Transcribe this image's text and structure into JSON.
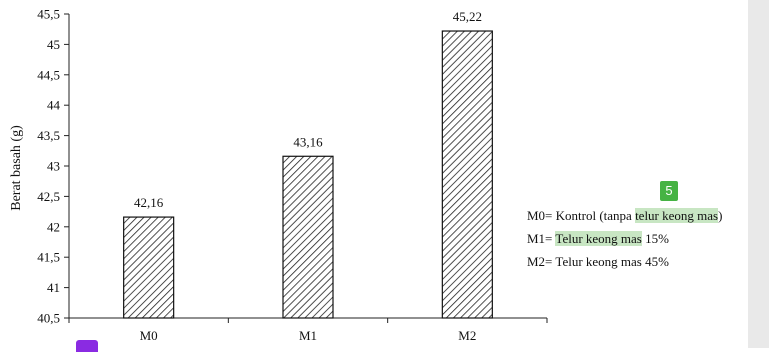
{
  "chart_data": {
    "type": "bar",
    "categories": [
      "M0",
      "M1",
      "M2"
    ],
    "values": [
      42.16,
      43.16,
      45.22
    ],
    "data_labels": [
      "42,16",
      "43,16",
      "45,22"
    ],
    "ylabel": "Berat basah (g)",
    "ylim": [
      40.5,
      45.5
    ],
    "yticks": [
      40.5,
      41,
      41.5,
      42,
      42.5,
      43,
      43.5,
      44,
      44.5,
      45,
      45.5
    ],
    "ytick_labels": [
      "40,5",
      "41",
      "41,5",
      "42",
      "42,5",
      "43",
      "43,5",
      "44",
      "44,5",
      "45",
      "45,5"
    ],
    "grid": false,
    "bar_pattern": "diagonal-hatch"
  },
  "legend": {
    "m0_prefix": "M0= Kontrol (tanpa ",
    "m0_highlight": "telur keong mas",
    "m0_suffix": ")",
    "m1_prefix": "M1= ",
    "m1_highlight": "Telur keong mas",
    "m1_suffix": " 15%",
    "m2_text": "M2= Telur keong mas 45%"
  },
  "annotation_badge": "5",
  "colors": {
    "highlight": "#c8e6c3",
    "badge_green": "#46b344",
    "badge_purple": "#8a2be2"
  }
}
